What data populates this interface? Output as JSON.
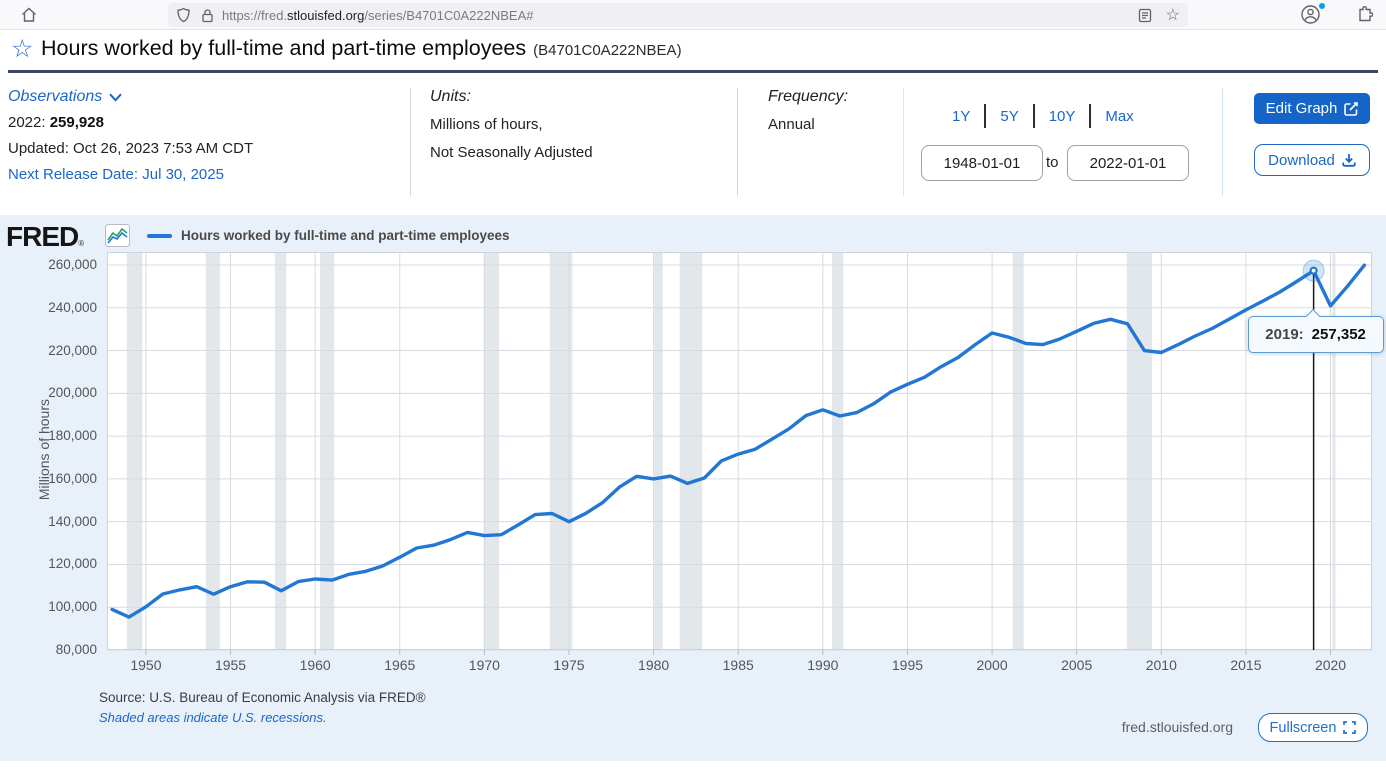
{
  "browser": {
    "url": {
      "prefix": "https://fred.",
      "domain": "stlouisfed.org",
      "path": "/series/B4701C0A222NBEA#"
    }
  },
  "page": {
    "title": "Hours worked by full-time and part-time employees",
    "series_id": "(B4701C0A222NBEA)"
  },
  "observations": {
    "label": "Observations",
    "latest_period": "2022:",
    "latest_value": "259,928",
    "updated": "Updated: Oct 26, 2023 7:53 AM CDT",
    "next_release": "Next Release Date: Jul 30, 2025"
  },
  "units": {
    "label": "Units:",
    "line1": "Millions of hours,",
    "line2": "Not Seasonally Adjusted"
  },
  "frequency": {
    "label": "Frequency:",
    "value": "Annual"
  },
  "range_controls": {
    "presets": [
      "1Y",
      "5Y",
      "10Y",
      "Max"
    ],
    "start_date": "1948-01-01",
    "to_label": "to",
    "end_date": "2022-01-01"
  },
  "buttons": {
    "edit_graph": "Edit Graph",
    "download": "Download",
    "fullscreen": "Fullscreen"
  },
  "chart_header": {
    "logo": "FRED",
    "registered": "®",
    "legend": "Hours worked by full-time and part-time employees"
  },
  "tooltip": {
    "label": "2019:",
    "value": "257,352"
  },
  "chart_footer": {
    "source": "Source: U.S. Bureau of Economic Analysis via FRED®",
    "recession_note": "Shaded areas indicate U.S. recessions.",
    "watermark": "fred.stlouisfed.org"
  },
  "chart_data": {
    "type": "line",
    "title": "Hours worked by full-time and part-time employees",
    "ylabel": "Millions of hours",
    "ylim": [
      80000,
      260000
    ],
    "ytick_step": 20000,
    "xlim": [
      1947.7,
      2022.45
    ],
    "xticks": [
      1950,
      1955,
      1960,
      1965,
      1970,
      1975,
      1980,
      1985,
      1990,
      1995,
      2000,
      2005,
      2010,
      2015,
      2020
    ],
    "grid": true,
    "legend_position": "top",
    "line_color": "#2277d4",
    "x": [
      1948,
      1949,
      1950,
      1951,
      1952,
      1953,
      1954,
      1955,
      1956,
      1957,
      1958,
      1959,
      1960,
      1961,
      1962,
      1963,
      1964,
      1965,
      1966,
      1967,
      1968,
      1969,
      1970,
      1971,
      1972,
      1973,
      1974,
      1975,
      1976,
      1977,
      1978,
      1979,
      1980,
      1981,
      1982,
      1983,
      1984,
      1985,
      1986,
      1987,
      1988,
      1989,
      1990,
      1991,
      1992,
      1993,
      1994,
      1995,
      1996,
      1997,
      1998,
      1999,
      2000,
      2001,
      2002,
      2003,
      2004,
      2005,
      2006,
      2007,
      2008,
      2009,
      2010,
      2011,
      2012,
      2013,
      2014,
      2015,
      2016,
      2017,
      2018,
      2019,
      2020,
      2021,
      2022
    ],
    "values": [
      99000,
      95400,
      100200,
      106200,
      108100,
      109600,
      106100,
      109600,
      111900,
      111700,
      107700,
      112000,
      113200,
      112700,
      115400,
      116800,
      119300,
      123400,
      127700,
      129000,
      131600,
      135000,
      133500,
      133900,
      138500,
      143300,
      143800,
      140000,
      143900,
      149000,
      156300,
      161200,
      160000,
      161300,
      157900,
      160400,
      168400,
      171600,
      173900,
      178600,
      183400,
      189600,
      192300,
      189400,
      191000,
      195100,
      200600,
      204200,
      207500,
      212500,
      216800,
      222800,
      228200,
      226200,
      223300,
      222800,
      225400,
      229000,
      232700,
      234600,
      232500,
      220000,
      219100,
      222800,
      226800,
      230300,
      234600,
      239000,
      243100,
      247400,
      252300,
      257352,
      240900,
      250100,
      259928
    ],
    "highlight": {
      "x": 2019,
      "y": 257352
    },
    "recessions": [
      [
        1948.87,
        1949.79
      ],
      [
        1953.54,
        1954.37
      ],
      [
        1957.62,
        1958.29
      ],
      [
        1960.29,
        1961.12
      ],
      [
        1969.96,
        1970.87
      ],
      [
        1973.87,
        1975.2
      ],
      [
        1980.04,
        1980.54
      ],
      [
        1981.54,
        1982.87
      ],
      [
        1990.54,
        1991.21
      ],
      [
        2001.21,
        2001.87
      ],
      [
        2007.96,
        2009.45
      ],
      [
        2020.12,
        2020.29
      ]
    ],
    "colors": {
      "recession_band": "#e2e7ec",
      "gridline": "#d7dbdf",
      "crosshair": "#1a1a1a",
      "chart_bg": "#e8f1fa"
    }
  }
}
